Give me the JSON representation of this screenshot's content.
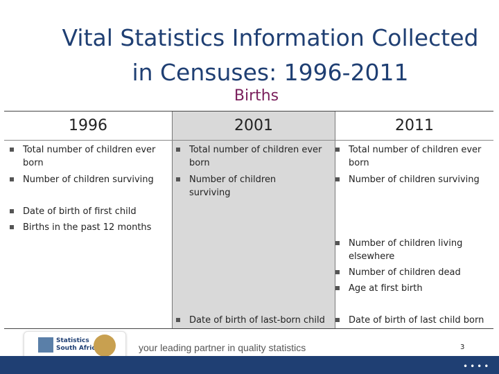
{
  "title": {
    "line1": "Vital Statistics Information Collected",
    "line2": "in Censuses: 1996-2011"
  },
  "subtitle": "Births",
  "columns": [
    {
      "header": "1996",
      "items": [
        "Total number of children ever born",
        "Number of children surviving",
        "Date of birth of first child",
        "Births in the past 12 months"
      ]
    },
    {
      "header": "2001",
      "items": [
        "Total number of children ever born",
        "Number of children surviving",
        "Date of birth of last-born child"
      ]
    },
    {
      "header": "2011",
      "items": [
        "Total number of children ever born",
        "Number of children surviving",
        "Number of children living elsewhere",
        "Number of children dead",
        "Age at first birth",
        "Date of birth of last child born"
      ]
    }
  ],
  "footer": {
    "logo_text_1": "Statistics",
    "logo_text_2": "South Africa",
    "tagline": "your leading partner in quality statistics",
    "page_number": "3",
    "dots": "••••"
  },
  "colors": {
    "title": "#1f3f73",
    "subtitle": "#7a1f5c",
    "shade": "#d9d9d9",
    "footer_bar": "#1f3f73"
  }
}
